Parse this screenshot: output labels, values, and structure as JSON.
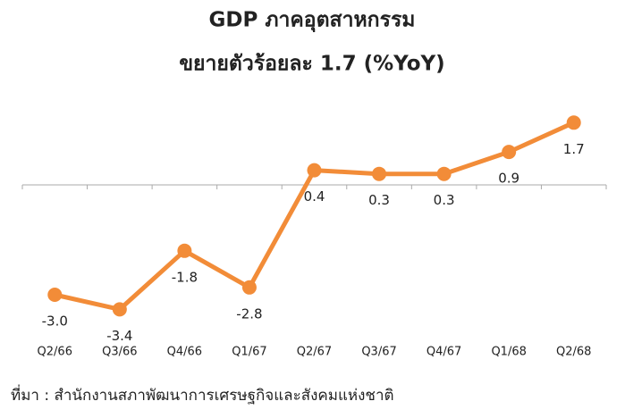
{
  "chart_data": {
    "type": "line",
    "title": "GDP ภาคอุตสาหกรรม",
    "subtitle": "ขยายตัวร้อยละ 1.7 (%YoY)",
    "categories": [
      "Q2/66",
      "Q3/66",
      "Q4/66",
      "Q1/67",
      "Q2/67",
      "Q3/67",
      "Q4/67",
      "Q1/68",
      "Q2/68"
    ],
    "values": [
      -3.0,
      -3.4,
      -1.8,
      -2.8,
      0.4,
      0.3,
      0.3,
      0.9,
      1.7
    ],
    "value_labels": [
      "-3.0",
      "-3.4",
      "-1.8",
      "-2.8",
      "0.4",
      "0.3",
      "0.3",
      "0.9",
      "1.7"
    ],
    "color": "#f28c38",
    "ylim": [
      -4,
      2.5
    ],
    "grid": false,
    "source": "ที่มา : สำนักงานสภาพัฒนาการเศรษฐกิจและสังคมแห่งชาติ"
  }
}
